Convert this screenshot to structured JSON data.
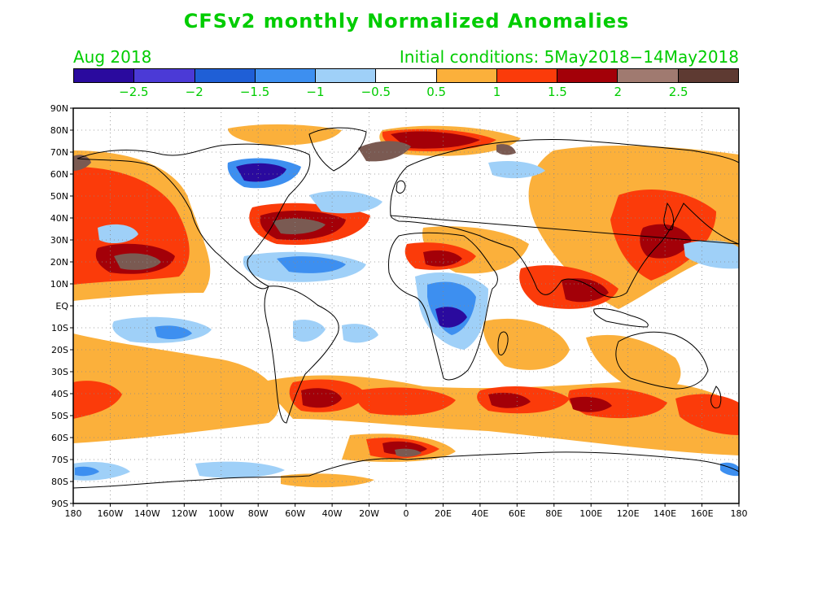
{
  "title": "CFSv2 monthly Normalized Anomalies",
  "subtitle_left": "Aug 2018",
  "subtitle_right": "Initial conditions: 5May2018−14May2018",
  "colorbar": {
    "colors": [
      "#2a0a9e",
      "#4b3ad6",
      "#1f5fd6",
      "#3d8ff0",
      "#9fd0f8",
      "#ffffff",
      "#fbb03b",
      "#fb3b0a",
      "#a30008",
      "#a07a70",
      "#5e3a32"
    ],
    "labels": [
      "−2.5",
      "−2",
      "−1.5",
      "−1",
      "−0.5",
      "0.5",
      "1",
      "1.5",
      "2",
      "2.5"
    ]
  },
  "lat_labels": [
    "90N",
    "80N",
    "70N",
    "60N",
    "50N",
    "40N",
    "30N",
    "20N",
    "10N",
    "EQ",
    "10S",
    "20S",
    "30S",
    "40S",
    "50S",
    "60S",
    "70S",
    "80S",
    "90S"
  ],
  "lon_labels": [
    "180",
    "160W",
    "140W",
    "120W",
    "100W",
    "80W",
    "60W",
    "40W",
    "20W",
    "0",
    "20E",
    "40E",
    "60E",
    "80E",
    "100E",
    "120E",
    "140E",
    "160E",
    "180"
  ]
}
